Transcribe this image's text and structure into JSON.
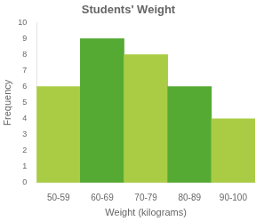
{
  "chart_data": {
    "type": "bar",
    "title": "Students' Weight",
    "xlabel": "Weight (kilograms)",
    "ylabel": "Frequency",
    "categories": [
      "50-59",
      "60-69",
      "70-79",
      "80-89",
      "90-100"
    ],
    "values": [
      6,
      9,
      8,
      6,
      4
    ],
    "colors": [
      "#aacc44",
      "#55aa33",
      "#aacc44",
      "#55aa33",
      "#aacc44"
    ],
    "ylim": [
      0,
      10
    ],
    "yticks": [
      0,
      1,
      2,
      3,
      4,
      5,
      6,
      7,
      8,
      9,
      10
    ],
    "grid": false
  }
}
